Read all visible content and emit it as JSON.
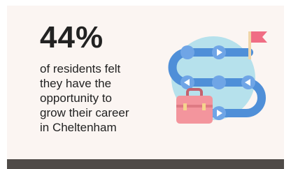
{
  "stat": "44%",
  "description_lines": [
    "of residents felt",
    "they have the",
    "opportunity to",
    "grow their career",
    "in Cheltenham"
  ]
}
